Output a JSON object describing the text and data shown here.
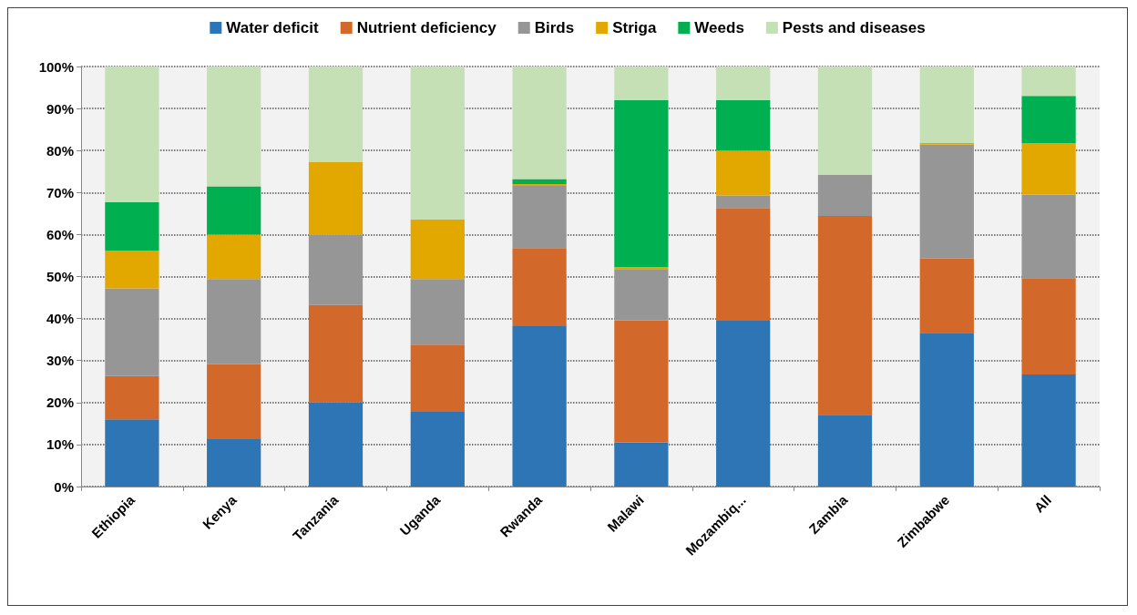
{
  "chart_data": {
    "type": "bar",
    "stacked": true,
    "categories": [
      "Ethiopia",
      "Kenya",
      "Tanzania",
      "Uganda",
      "Rwanda",
      "Malawi",
      "Mozambiq...",
      "Zambia",
      "Zimbabwe",
      "All"
    ],
    "series": [
      {
        "name": "Water deficit",
        "color": "#2e75b6",
        "values": [
          16,
          11.3,
          20,
          17.8,
          38.2,
          10.5,
          39.5,
          17.1,
          36.6,
          26.7
        ]
      },
      {
        "name": "Nutrient deficiency",
        "color": "#d2692a",
        "values": [
          10.3,
          17.8,
          23.2,
          16,
          18.6,
          29.1,
          26.8,
          47.3,
          17.7,
          22.9
        ]
      },
      {
        "name": "Birds",
        "color": "#969696",
        "values": [
          20.9,
          20.3,
          16.8,
          15.6,
          14.8,
          12.2,
          3,
          9.8,
          27.1,
          19.9
        ]
      },
      {
        "name": "Striga",
        "color": "#e3a800",
        "values": [
          9,
          10.6,
          17.2,
          14.2,
          0.4,
          0.4,
          10.7,
          0,
          0.4,
          12.3
        ]
      },
      {
        "name": "Weeds",
        "color": "#00b050",
        "values": [
          11.5,
          11.5,
          0,
          0,
          1.2,
          39.8,
          12,
          0,
          0,
          11.2
        ]
      },
      {
        "name": "Pests and diseases",
        "color": "#c5e0b4",
        "values": [
          32.3,
          28.5,
          22.8,
          36.4,
          26.8,
          8,
          8,
          25.8,
          18.2,
          7
        ]
      }
    ],
    "ylim": [
      0,
      100
    ],
    "yticks": [
      {
        "value": 0,
        "label": "0%"
      },
      {
        "value": 10,
        "label": "10%"
      },
      {
        "value": 20,
        "label": "20%"
      },
      {
        "value": 30,
        "label": "30%"
      },
      {
        "value": 40,
        "label": "40%"
      },
      {
        "value": 50,
        "label": "50%"
      },
      {
        "value": 60,
        "label": "60%"
      },
      {
        "value": 70,
        "label": "70%"
      },
      {
        "value": 80,
        "label": "80%"
      },
      {
        "value": 90,
        "label": "90%"
      },
      {
        "value": 100,
        "label": "100%"
      }
    ],
    "grid": "y",
    "legend": "top"
  }
}
